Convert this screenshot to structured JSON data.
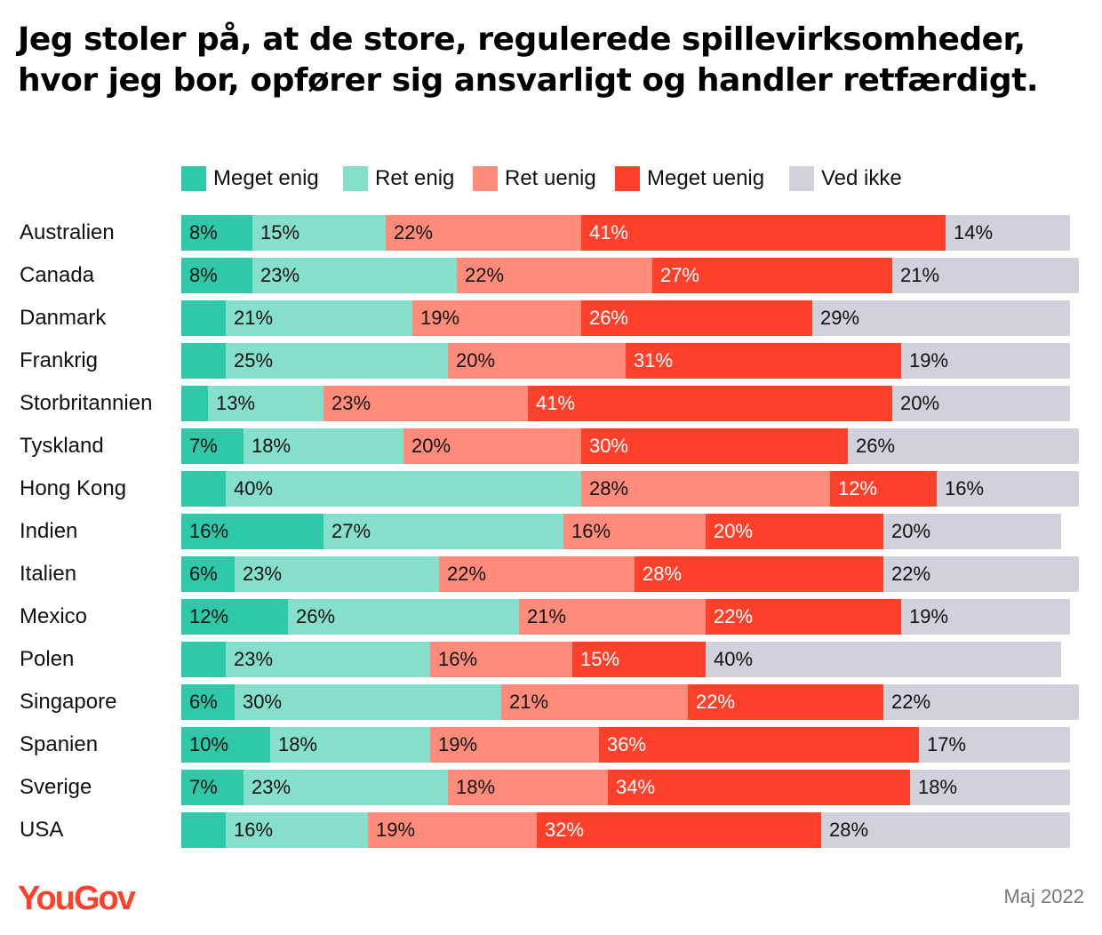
{
  "title": "Jeg stoler på, at de store, regulerede spillevirksomheder, hvor jeg bor, opfører sig ansvarligt og handler retfærdigt.",
  "source_logo": "YouGov",
  "date": "Maj 2022",
  "colors": [
    "#2ec9a8",
    "#85dfca",
    "#ff8b7b",
    "#ff412c",
    "#d0d1da"
  ],
  "chart_data": {
    "type": "bar",
    "orientation": "horizontal",
    "stacked": true,
    "unit": "%",
    "legend_position": "top",
    "categories": [
      "Australien",
      "Canada",
      "Danmark",
      "Frankrig",
      "Storbritannien",
      "Tyskland",
      "Hong Kong",
      "Indien",
      "Italien",
      "Mexico",
      "Polen",
      "Singapore",
      "Spanien",
      "Sverige",
      "USA"
    ],
    "series": [
      {
        "name": "Meget enig",
        "values": [
          8,
          8,
          5,
          5,
          3,
          7,
          5,
          16,
          6,
          12,
          5,
          6,
          10,
          7,
          5
        ],
        "labels": [
          "8%",
          "8%",
          "",
          "",
          "",
          "7%",
          "",
          "16%",
          "6%",
          "12%",
          "",
          "6%",
          "10%",
          "7%",
          ""
        ]
      },
      {
        "name": "Ret enig",
        "values": [
          15,
          23,
          21,
          25,
          13,
          18,
          40,
          27,
          23,
          26,
          23,
          30,
          18,
          23,
          16
        ],
        "labels": [
          "15%",
          "23%",
          "21%",
          "25%",
          "13%",
          "18%",
          "40%",
          "27%",
          "23%",
          "26%",
          "23%",
          "30%",
          "18%",
          "23%",
          "16%"
        ]
      },
      {
        "name": "Ret uenig",
        "values": [
          22,
          22,
          19,
          20,
          23,
          20,
          28,
          16,
          22,
          21,
          16,
          21,
          19,
          18,
          19
        ],
        "labels": [
          "22%",
          "22%",
          "19%",
          "20%",
          "23%",
          "20%",
          "28%",
          "16%",
          "22%",
          "21%",
          "16%",
          "21%",
          "19%",
          "18%",
          "19%"
        ]
      },
      {
        "name": "Meget uenig",
        "values": [
          41,
          27,
          26,
          31,
          41,
          30,
          12,
          20,
          28,
          22,
          15,
          22,
          36,
          34,
          32
        ],
        "labels": [
          "41%",
          "27%",
          "26%",
          "31%",
          "41%",
          "30%",
          "12%",
          "20%",
          "28%",
          "22%",
          "15%",
          "22%",
          "36%",
          "34%",
          "32%"
        ]
      },
      {
        "name": "Ved ikke",
        "values": [
          14,
          21,
          29,
          19,
          20,
          26,
          16,
          20,
          22,
          19,
          40,
          22,
          17,
          18,
          28
        ],
        "labels": [
          "14%",
          "21%",
          "29%",
          "19%",
          "20%",
          "26%",
          "16%",
          "20%",
          "22%",
          "19%",
          "40%",
          "22%",
          "17%",
          "18%",
          "28%"
        ]
      }
    ]
  }
}
